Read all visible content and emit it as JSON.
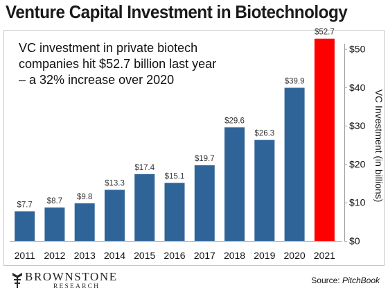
{
  "chart_data": {
    "type": "bar",
    "title": "Venture Capital Investment in Biotechnology",
    "categories": [
      "2011",
      "2012",
      "2013",
      "2014",
      "2015",
      "2016",
      "2017",
      "2018",
      "2019",
      "2020",
      "2021"
    ],
    "values": [
      7.7,
      8.7,
      9.8,
      13.3,
      17.4,
      15.1,
      19.7,
      29.6,
      26.3,
      39.9,
      52.7
    ],
    "data_labels": [
      "$7.7",
      "$8.7",
      "$9.8",
      "$13.3",
      "$17.4",
      "$15.1",
      "$19.7",
      "$29.6",
      "$26.3",
      "$39.9",
      "$52.7"
    ],
    "ylabel": "VC Investment (in billions)",
    "yticks": [
      "$0",
      "$10",
      "$20",
      "$30",
      "$40",
      "$50"
    ],
    "ytick_values": [
      0,
      10,
      20,
      30,
      40,
      50
    ],
    "ylim": [
      0,
      55
    ],
    "y_axis_side": "right",
    "grid": false,
    "colors": {
      "bar": "#2f6498",
      "highlight": "#ff0000"
    },
    "highlight_category": "2021",
    "annotation": [
      "VC investment in private biotech",
      "companies hit $52.7 billion last year",
      "– a 32% increase over 2020"
    ]
  },
  "logo": {
    "name": "BROWNSTONE",
    "subtitle": "RESEARCH"
  },
  "source": {
    "prefix": "Source: ",
    "name": "PitchBook"
  }
}
